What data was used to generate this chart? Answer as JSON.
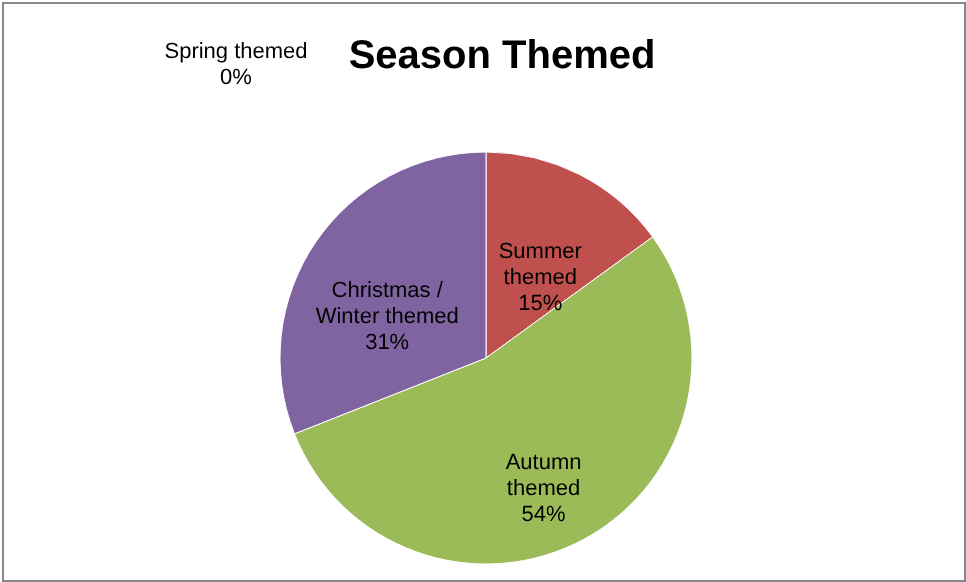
{
  "chart_data": {
    "type": "pie",
    "title": "Season Themed",
    "categories": [
      "Spring themed",
      "Summer themed",
      "Autumn themed",
      "Christmas / Winter themed"
    ],
    "values": [
      0,
      15,
      54,
      31
    ],
    "value_labels": [
      "0%",
      "15%",
      "54%",
      "31%"
    ],
    "colors": [
      "#4f81bd",
      "#c0504d",
      "#9bbb59",
      "#8064a2"
    ]
  }
}
